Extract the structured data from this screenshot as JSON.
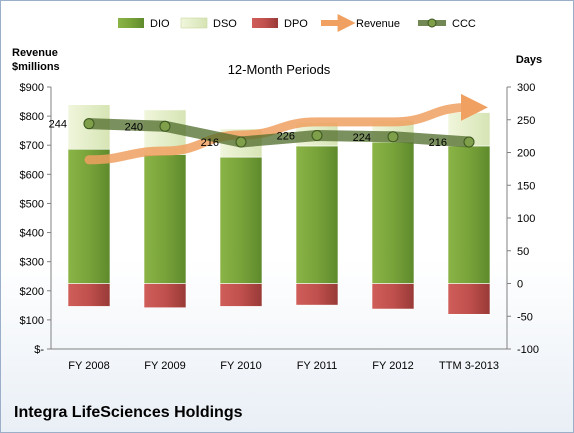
{
  "chart_data": {
    "type": "bar",
    "title": "12-Month Periods",
    "company": "Integra LifeSciences Holdings",
    "left_axis_title_line1": "Revenue",
    "left_axis_title_line2": "$millions",
    "right_axis_title": "Days",
    "categories": [
      "FY 2008",
      "FY 2009",
      "FY 2010",
      "FY 2011",
      "FY 2012",
      "TTM 3-2013"
    ],
    "left_ticks": [
      "$-",
      "$100",
      "$200",
      "$300",
      "$400",
      "$500",
      "$600",
      "$700",
      "$800",
      "$900"
    ],
    "right_ticks": [
      "-100",
      "-50",
      "0",
      "50",
      "100",
      "150",
      "200",
      "250",
      "300"
    ],
    "ylim_days": [
      -100,
      300
    ],
    "ylim_revenue": [
      0,
      900
    ],
    "legend": [
      {
        "name": "DIO",
        "color": "#77a03a"
      },
      {
        "name": "DSO",
        "color": "#e6f0c8"
      },
      {
        "name": "DPO",
        "color": "#c0504d"
      },
      {
        "name": "Revenue",
        "color": "#f0a060"
      },
      {
        "name": "CCC",
        "color": "#4f6b2a"
      }
    ],
    "series": [
      {
        "name": "DIO",
        "values": [
          205,
          197,
          193,
          210,
          216,
          210
        ]
      },
      {
        "name": "DSO",
        "values": [
          68,
          68,
          43,
          36,
          33,
          51
        ]
      },
      {
        "name": "DPO",
        "values": [
          -35,
          -37,
          -35,
          -33,
          -39,
          -47
        ]
      },
      {
        "name": "Revenue",
        "values": [
          650,
          680,
          735,
          780,
          780,
          830
        ]
      },
      {
        "name": "CCC",
        "values": [
          244,
          240,
          216,
          226,
          224,
          216
        ]
      }
    ],
    "ccc_labels": [
      "244",
      "240",
      "216",
      "226",
      "224",
      "216"
    ]
  }
}
